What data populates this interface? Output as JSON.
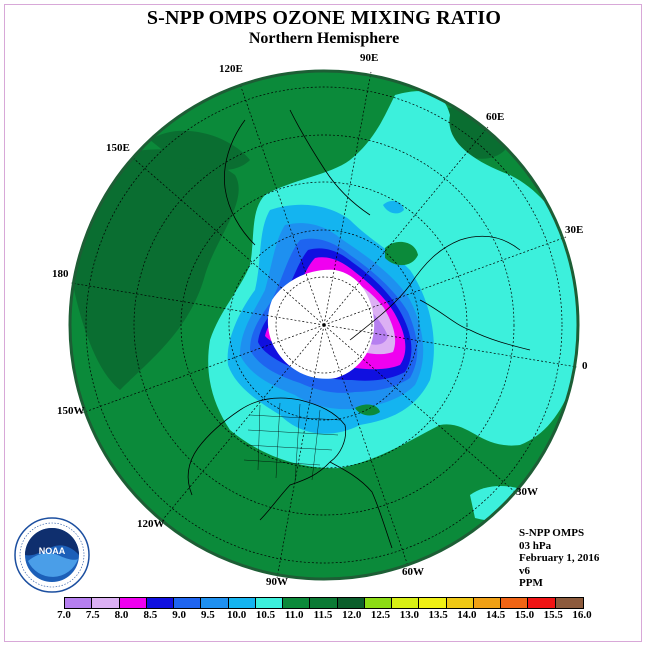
{
  "title": "S-NPP OMPS OZONE MIXING RATIO",
  "subtitle": "Northern Hemisphere",
  "longitude_labels": {
    "lon_90e": "90E",
    "lon_60e": "60E",
    "lon_30e": "30E",
    "lon_0": "0",
    "lon_30w": "30W",
    "lon_60w": "60W",
    "lon_90w": "90W",
    "lon_120w": "120W",
    "lon_150w": "150W",
    "lon_180": "180",
    "lon_150e": "150E",
    "lon_120e": "120E"
  },
  "info": {
    "instrument": "S-NPP OMPS",
    "level": "03 hPa",
    "date": "February 1, 2016",
    "version": "v6",
    "units": "PPM"
  },
  "colorbar": {
    "ticks": [
      "7.0",
      "7.5",
      "8.0",
      "8.5",
      "9.0",
      "9.5",
      "10.0",
      "10.5",
      "11.0",
      "11.5",
      "12.0",
      "12.5",
      "13.0",
      "13.5",
      "14.0",
      "14.5",
      "15.0",
      "15.5",
      "16.0"
    ],
    "colors": [
      "#b67ff0",
      "#dcb0f4",
      "#f000f0",
      "#1010e0",
      "#1e64f0",
      "#1e90f0",
      "#14b4f0",
      "#3cf0dc",
      "#0b8a3a",
      "#0b7a34",
      "#0b5e2b",
      "#8cdc14",
      "#d8f014",
      "#f0f014",
      "#f0c814",
      "#f0a014",
      "#f06414",
      "#f01414",
      "#8c5a3c"
    ]
  },
  "colors": {
    "background": "#ffffff",
    "ozone_11_11p5": "#0b8a3a",
    "ozone_11p5_12": "#0a6e31",
    "ozone_10p5_11": "#3cf0dc",
    "ozone_10_10p5": "#14b4f0",
    "ozone_9p5_10": "#1e90f0",
    "ozone_9_9p5": "#1e64f0",
    "ozone_8p5_9": "#1010e0",
    "ozone_8_8p5": "#f000f0",
    "ozone_7p5_8": "#dcb0f4",
    "ozone_7_7p5": "#b67ff0",
    "no_data": "#ffffff"
  },
  "logo": {
    "name": "NOAA",
    "ring_text": "NATIONAL OCEANIC AND ATMOSPHERIC ADMINISTRATION · U.S. DEPARTMENT OF COMMERCE"
  }
}
